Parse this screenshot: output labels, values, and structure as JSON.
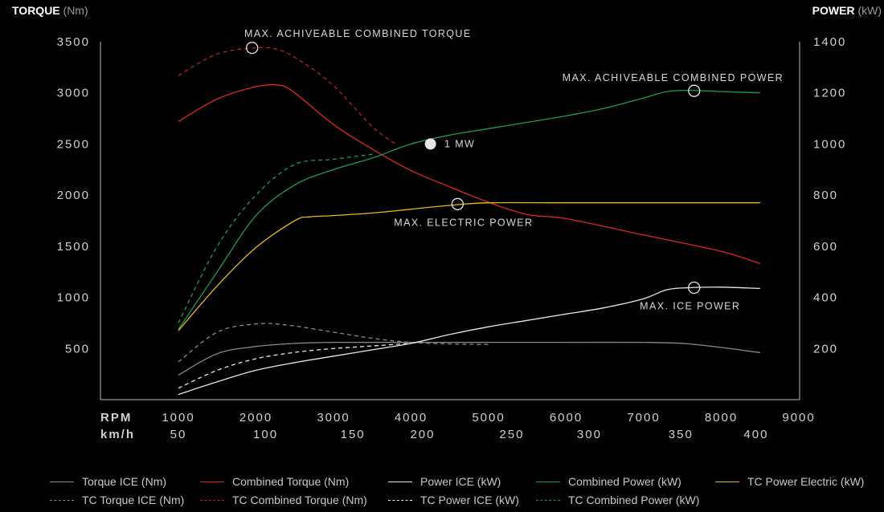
{
  "header": {
    "left_title": "TORQUE",
    "left_unit": "(Nm)",
    "right_title": "POWER",
    "right_unit": "(kW)"
  },
  "chart_data": {
    "type": "line",
    "x_axis": {
      "rpm_label": "RPM",
      "kmh_label": "km/h",
      "rpm_ticks": [
        1000,
        2000,
        3000,
        4000,
        5000,
        6000,
        7000,
        8000,
        9000
      ],
      "kmh_ticks": [
        50,
        100,
        150,
        200,
        250,
        300,
        350,
        400
      ],
      "kmh_tick_rpm": [
        1000,
        2125,
        3250,
        4150,
        5300,
        6300,
        7480,
        8450
      ],
      "xlim": [
        1000,
        9000
      ]
    },
    "y_left": {
      "ticks": [
        500,
        1000,
        1500,
        2000,
        2500,
        3000,
        3500
      ],
      "ylim": [
        0,
        3500
      ]
    },
    "y_right": {
      "ticks": [
        200,
        400,
        600,
        800,
        1000,
        1200,
        1400
      ],
      "ylim": [
        0,
        1400
      ]
    },
    "series": [
      {
        "name": "Torque ICE (Nm)",
        "axis": "left",
        "color": "#8a8a8a",
        "dash": false,
        "x": [
          1000,
          1500,
          2000,
          2500,
          3000,
          4000,
          5000,
          6000,
          7000,
          7500,
          8000,
          8500
        ],
        "y": [
          240,
          450,
          520,
          550,
          560,
          560,
          560,
          560,
          560,
          550,
          510,
          460
        ]
      },
      {
        "name": "TC Torque ICE (Nm)",
        "axis": "left",
        "color": "#8a8a8a",
        "dash": true,
        "x": [
          1000,
          1500,
          2000,
          2400,
          3000,
          3500,
          4000,
          4500,
          5000
        ],
        "y": [
          370,
          660,
          740,
          730,
          660,
          600,
          560,
          545,
          540
        ]
      },
      {
        "name": "Combined Torque (Nm)",
        "axis": "left",
        "color": "#d9262a",
        "dash": false,
        "x": [
          1000,
          1500,
          2000,
          2300,
          2500,
          3000,
          3500,
          4000,
          4500,
          5000,
          5500,
          6000,
          7000,
          8000,
          8500
        ],
        "y": [
          2720,
          2940,
          3060,
          3075,
          3000,
          2690,
          2450,
          2240,
          2080,
          1930,
          1810,
          1770,
          1610,
          1450,
          1330
        ]
      },
      {
        "name": "TC Combined Torque (Nm)",
        "axis": "left",
        "color": "#b22428",
        "dash": true,
        "x": [
          1000,
          1500,
          2000,
          2300,
          2600,
          3000,
          3500,
          3800
        ],
        "y": [
          3170,
          3380,
          3440,
          3420,
          3300,
          3070,
          2670,
          2500
        ]
      },
      {
        "name": "Power ICE (kW)",
        "axis": "right",
        "color": "#e8e8e8",
        "dash": false,
        "x": [
          1000,
          1500,
          2000,
          2500,
          3000,
          3500,
          4000,
          4500,
          5000,
          5500,
          6000,
          6500,
          7000,
          7300,
          7600,
          8000,
          8500
        ],
        "y": [
          20,
          70,
          115,
          145,
          170,
          195,
          220,
          255,
          285,
          310,
          335,
          360,
          395,
          430,
          438,
          440,
          435
        ]
      },
      {
        "name": "TC Power ICE (kW)",
        "axis": "right",
        "color": "#e8e8e8",
        "dash": true,
        "x": [
          1000,
          1500,
          2000,
          2500,
          3000,
          3500,
          4000
        ],
        "y": [
          45,
          115,
          160,
          185,
          200,
          210,
          220
        ]
      },
      {
        "name": "Combined Power (kW)",
        "axis": "right",
        "color": "#1f9a52",
        "dash": false,
        "x": [
          1000,
          1500,
          2000,
          2500,
          3000,
          3500,
          4000,
          4500,
          5000,
          5500,
          6000,
          6500,
          7000,
          7300,
          7600,
          8000,
          8500
        ],
        "y": [
          275,
          500,
          720,
          840,
          900,
          945,
          1000,
          1035,
          1060,
          1085,
          1110,
          1140,
          1180,
          1205,
          1210,
          1205,
          1200
        ]
      },
      {
        "name": "TC Combined Power (kW)",
        "axis": "right",
        "color": "#1f9a52",
        "dash": true,
        "x": [
          1000,
          1500,
          2000,
          2500,
          3000,
          3500
        ],
        "y": [
          300,
          600,
          800,
          920,
          940,
          960
        ]
      },
      {
        "name": "TC Power Electric (kW)",
        "axis": "right",
        "color": "#e6b81e",
        "dash": false,
        "x": [
          1000,
          1500,
          2000,
          2500,
          2700,
          3000,
          3500,
          4000,
          4500,
          5000,
          6000,
          7000,
          8000,
          8500
        ],
        "y": [
          270,
          445,
          595,
          700,
          715,
          720,
          730,
          745,
          760,
          770,
          770,
          770,
          770,
          770
        ]
      }
    ],
    "annotations": [
      {
        "text": "MAX. ACHIVEABLE COMBINED TORQUE",
        "x": 1950,
        "y": 3440,
        "axis": "left",
        "marker": "ring",
        "tx": 1850,
        "ty": 3580
      },
      {
        "text": "MAX. ACHIVEABLE COMBINED POWER",
        "x": 7650,
        "y": 1208,
        "axis": "right",
        "marker": "ring",
        "tx": 5950,
        "ty": 1258
      },
      {
        "text": "1 MW",
        "x": 4250,
        "y": 1000,
        "axis": "right",
        "marker": "dot",
        "tx": 4430,
        "ty": 1000
      },
      {
        "text": "MAX. ELECTRIC POWER",
        "x": 4600,
        "y": 765,
        "axis": "right",
        "marker": "ring",
        "tx": 3780,
        "ty": 692
      },
      {
        "text": "MAX. ICE POWER",
        "x": 7650,
        "y": 438,
        "axis": "right",
        "marker": "ring",
        "tx": 6950,
        "ty": 365
      }
    ]
  }
}
